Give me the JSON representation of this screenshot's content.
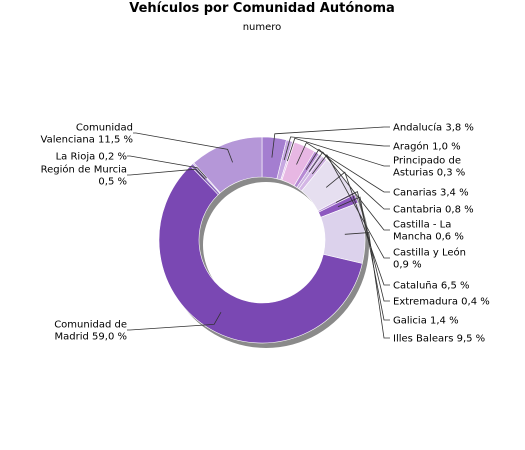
{
  "chart_data": {
    "type": "pie",
    "title": "Vehículos por Comunidad Autónoma",
    "subtitle": "numero",
    "labels": [
      "Andalucía",
      "Aragón",
      "Principado de Asturias",
      "Canarias",
      "Cantabria",
      "Castilla - La Mancha",
      "Castilla y León",
      "Cataluña",
      "Extremadura",
      "Galicia",
      "Illes Balears",
      "Comunidad de Madrid",
      "Región de Murcia",
      "La Rioja",
      "Comunidad Valenciana"
    ],
    "values": [
      3.8,
      1.0,
      0.3,
      3.4,
      0.8,
      0.6,
      0.9,
      6.5,
      0.4,
      1.4,
      9.5,
      59.0,
      0.5,
      0.2,
      11.5
    ],
    "display_labels": [
      [
        "Andalucía 3,8 %"
      ],
      [
        "Aragón 1,0 %"
      ],
      [
        "Principado de",
        "Asturias 0,3 %"
      ],
      [
        "Canarias 3,4 %"
      ],
      [
        "Cantabria 0,8 %"
      ],
      [
        "Castilla - La",
        "Mancha 0,6 %"
      ],
      [
        "Castilla y León",
        "0,9 %"
      ],
      [
        "Cataluña 6,5 %"
      ],
      [
        "Extremadura 0,4 %"
      ],
      [
        "Galicia 1,4 %"
      ],
      [
        "Illes Balears 9,5 %"
      ],
      [
        "Comunidad de",
        "Madrid 59,0 %"
      ],
      [
        "Región de Murcia",
        "0,5 %"
      ],
      [
        "La Rioja 0,2 %"
      ],
      [
        "Comunidad",
        "Valenciana 11,5 %"
      ]
    ],
    "unit": "%",
    "donut": true,
    "colors": [
      "#a47ed0",
      "#c6a8e1",
      "#e4c2ea",
      "#e7b7e3",
      "#b68ad4",
      "#cdb4e2",
      "#d3b6e5",
      "#e6dff0",
      "#b995d8",
      "#8d58bf",
      "#dcd2ec",
      "#7a48b3",
      "#8f6cbf",
      "#c2a9dc",
      "#b597d8"
    ]
  }
}
